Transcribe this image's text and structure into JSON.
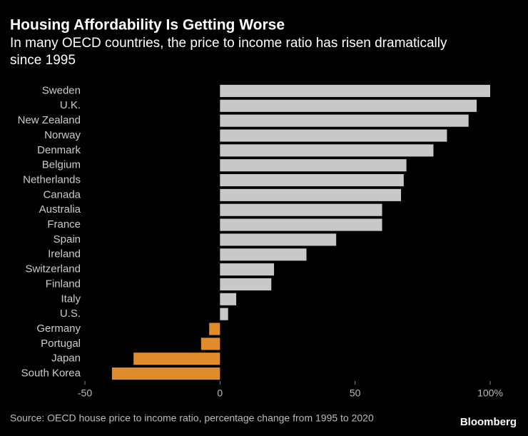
{
  "chart_data": {
    "type": "bar",
    "orientation": "horizontal",
    "title": "Housing Affordability Is Getting Worse",
    "subtitle": [
      "In many OECD countries, the price to income ratio has risen dramatically",
      "since 1995"
    ],
    "categories": [
      "Sweden",
      "U.K.",
      "New Zealand",
      "Norway",
      "Denmark",
      "Belgium",
      "Netherlands",
      "Canada",
      "Australia",
      "France",
      "Spain",
      "Ireland",
      "Switzerland",
      "Finland",
      "Italy",
      "U.S.",
      "Germany",
      "Portugal",
      "Japan",
      "South Korea"
    ],
    "values": [
      100,
      95,
      92,
      84,
      79,
      69,
      68,
      67,
      60,
      60,
      43,
      32,
      20,
      19,
      6,
      3,
      -4,
      -7,
      -32,
      -40
    ],
    "color": "#c8c8c8",
    "negative_color": "#e08c2a",
    "xlim": [
      -50,
      100
    ],
    "xticks": [
      -50,
      0,
      50,
      {
        "value": 100,
        "label": "100%"
      }
    ],
    "source": "Source: OECD house price to income ratio, percentage change from 1995 to 2020",
    "logo": "Bloomberg"
  }
}
